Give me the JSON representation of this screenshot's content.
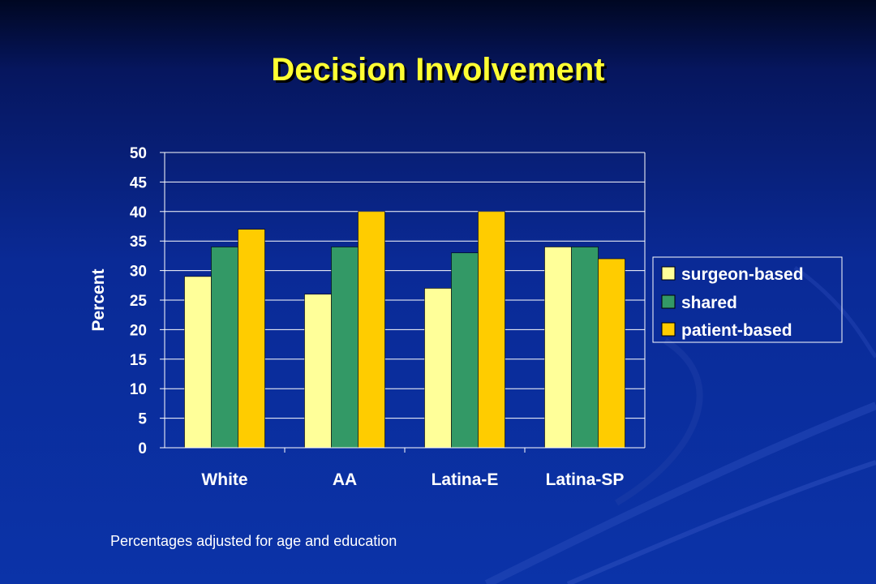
{
  "slide": {
    "title": "Decision Involvement",
    "footnote": "Percentages adjusted for age and education"
  },
  "chart_data": {
    "type": "bar",
    "categories": [
      "White",
      "AA",
      "Latina-E",
      "Latina-SP"
    ],
    "series": [
      {
        "name": "surgeon-based",
        "values": [
          29,
          26,
          27,
          34
        ],
        "color": "#ffff99"
      },
      {
        "name": "shared",
        "values": [
          34,
          34,
          33,
          34
        ],
        "color": "#339966"
      },
      {
        "name": "patient-based",
        "values": [
          37,
          40,
          40,
          32
        ],
        "color": "#ffcc00"
      }
    ],
    "ylabel": "Percent",
    "xlabel": "",
    "ylim": [
      0,
      50
    ],
    "yticks": [
      0,
      5,
      10,
      15,
      20,
      25,
      30,
      35,
      40,
      45,
      50
    ],
    "grid": true,
    "legend_position": "right",
    "text_color": "#ffffff",
    "title_color": "#ffff33"
  }
}
